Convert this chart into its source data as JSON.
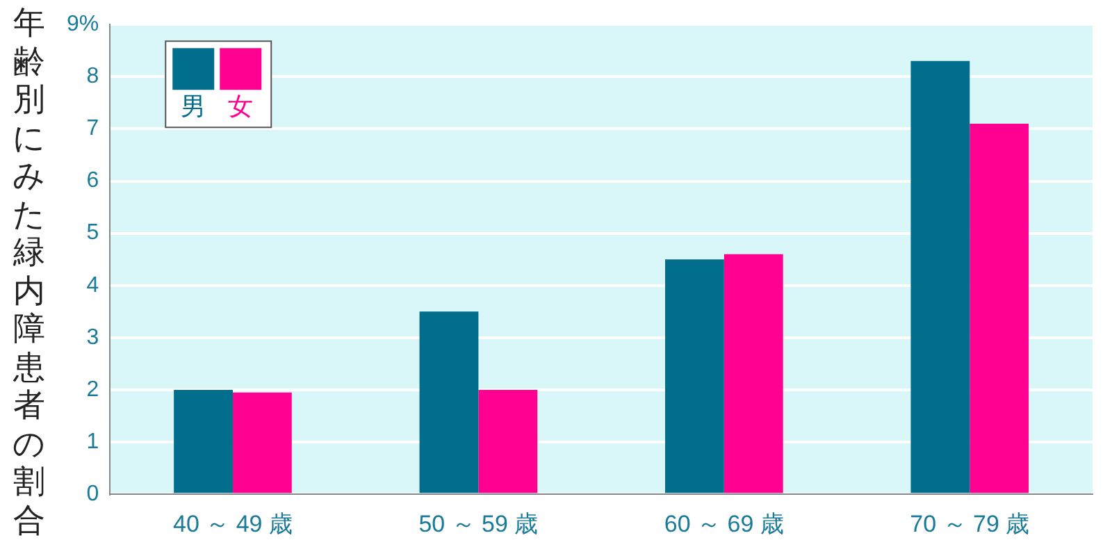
{
  "chart_data": {
    "type": "bar",
    "ylabel": "年齢別にみた緑内障患者の割合",
    "categories": [
      "40 ～ 49 歳",
      "50 ～ 59 歳",
      "60 ～ 69 歳",
      "70 ～ 79 歳"
    ],
    "series": [
      {
        "name": "男",
        "color": "#006e8c",
        "values": [
          2.0,
          3.5,
          4.5,
          8.3
        ]
      },
      {
        "name": "女",
        "color": "#ff0090",
        "values": [
          1.95,
          2.0,
          4.6,
          7.1
        ]
      }
    ],
    "ylim": [
      0,
      9
    ],
    "yticks": [
      0,
      1,
      2,
      3,
      4,
      5,
      6,
      7,
      8,
      {
        "value": 9,
        "label": "9%"
      }
    ],
    "grid": "y",
    "legend": "top left"
  }
}
